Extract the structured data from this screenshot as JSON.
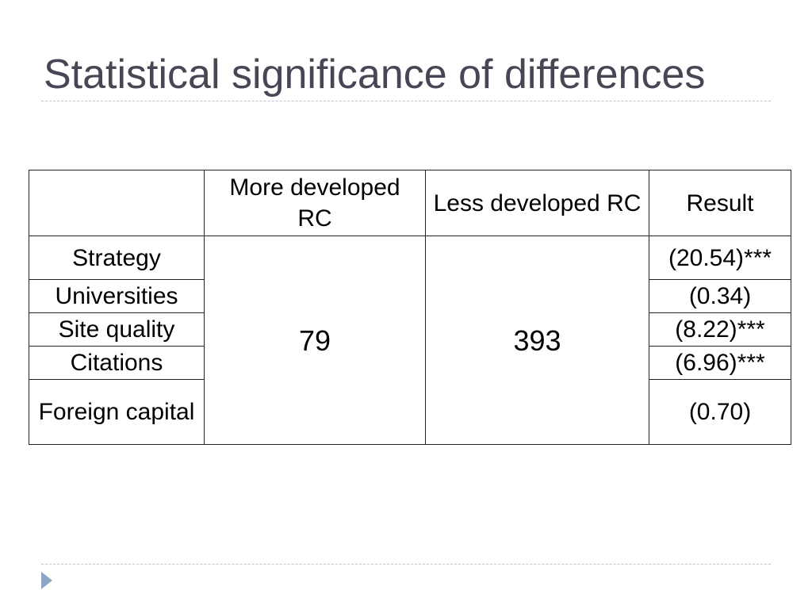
{
  "slide": {
    "title": "Statistical significance of differences"
  },
  "table": {
    "headers": {
      "label": "",
      "more_developed": "More developed RC",
      "less_developed": "Less developed RC",
      "result": "Result"
    },
    "merged_values": {
      "more_developed": "79",
      "less_developed": "393"
    },
    "rows": [
      {
        "label": "Strategy",
        "result": "(20.54)***"
      },
      {
        "label": "Universities",
        "result": "(0.34)"
      },
      {
        "label": "Site quality",
        "result": "(8.22)***"
      },
      {
        "label": "Citations",
        "result": "(6.96)***"
      },
      {
        "label": "Foreign capital",
        "result": "(0.70)"
      }
    ]
  },
  "colors": {
    "title": "#464655",
    "rule": "#b9c8d6",
    "nav_arrow": "#8da5c4",
    "table_border": "#222222"
  },
  "icons": {
    "nav": "triangle-right-icon"
  }
}
